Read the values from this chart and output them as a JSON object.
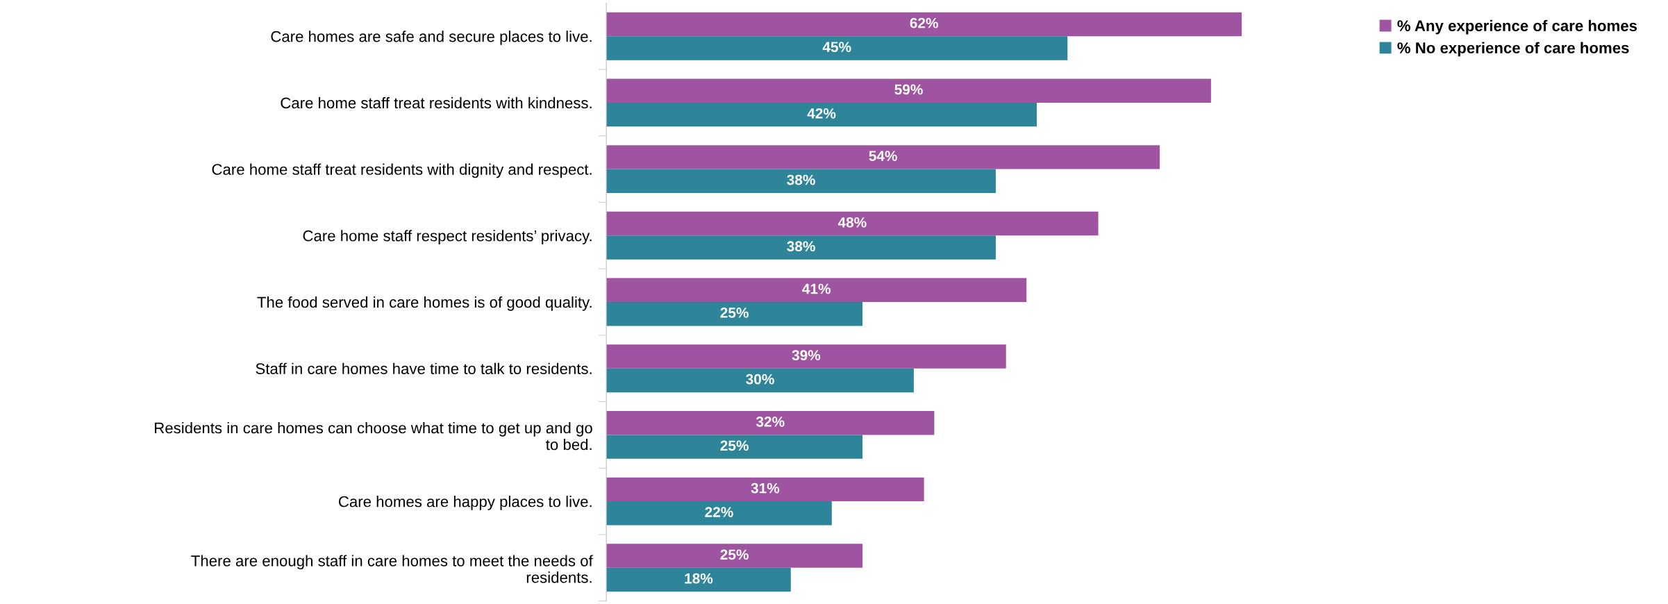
{
  "chart_data": {
    "type": "bar",
    "orientation": "horizontal",
    "legend": "top right",
    "grid": false,
    "categories": [
      "Care homes are safe and secure places to live.",
      "Care home staff treat residents with kindness.",
      "Care home staff treat residents with dignity and respect.",
      "Care home staff respect residents’ privacy.",
      "The food served in care homes is of good quality.",
      "Staff in care homes have time to talk to residents.",
      "Residents in care homes can choose what time to get up and go\nto bed.",
      "Care homes are happy places to live.",
      "There are enough staff in care homes to meet the needs of\nresidents."
    ],
    "series": [
      {
        "name": "% Any experience of care homes",
        "color": "#9e54a0",
        "values": [
          62,
          59,
          54,
          48,
          41,
          39,
          32,
          31,
          25
        ],
        "value_labels": [
          "62%",
          "59%",
          "54%",
          "48%",
          "41%",
          "39%",
          "32%",
          "31%",
          "25%"
        ]
      },
      {
        "name": "% No experience of care homes",
        "color": "#2e8599",
        "values": [
          45,
          42,
          38,
          38,
          25,
          30,
          25,
          22,
          18
        ],
        "value_labels": [
          "45%",
          "42%",
          "38%",
          "38%",
          "25%",
          "30%",
          "25%",
          "22%",
          "18%"
        ]
      }
    ]
  }
}
